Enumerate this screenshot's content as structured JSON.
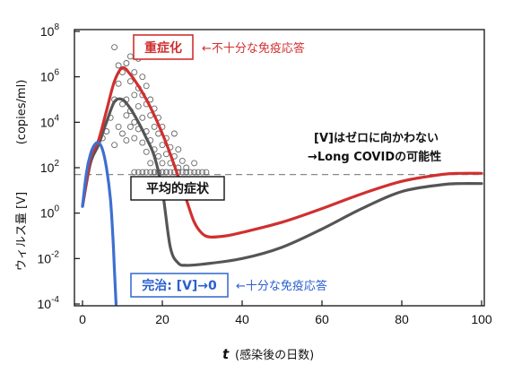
{
  "chart_data": {
    "type": "line",
    "title": "",
    "xlabel_italic": "t",
    "xlabel": "(感染後の日数)",
    "ylabel": "ウィルス量 [V]",
    "ylabel_unit": "(copies/ml)",
    "xlim": [
      0,
      100
    ],
    "ylim_log10": [
      -4,
      8
    ],
    "yscale": "log",
    "grid": false,
    "x_ticks": [
      0,
      20,
      40,
      60,
      80,
      100
    ],
    "y_ticks": [
      {
        "base": "10",
        "exp": "-4",
        "log10": -4
      },
      {
        "base": "10",
        "exp": "-2",
        "log10": -2
      },
      {
        "base": "10",
        "exp": "0",
        "log10": 0
      },
      {
        "base": "10",
        "exp": "2",
        "log10": 2
      },
      {
        "base": "10",
        "exp": "4",
        "log10": 4
      },
      {
        "base": "10",
        "exp": "6",
        "log10": 6
      },
      {
        "base": "10",
        "exp": "8",
        "log10": 8
      }
    ],
    "threshold_log10": 1.7,
    "series": [
      {
        "key": "severe",
        "color": "#d03030",
        "points": [
          [
            0,
            0.3
          ],
          [
            2,
            2.4
          ],
          [
            4,
            3.2
          ],
          [
            6,
            4.5
          ],
          [
            8,
            5.8
          ],
          [
            10,
            6.4
          ],
          [
            12,
            6.1
          ],
          [
            14,
            5.6
          ],
          [
            16,
            5.0
          ],
          [
            18,
            4.3
          ],
          [
            20,
            3.5
          ],
          [
            22,
            2.6
          ],
          [
            24,
            1.6
          ],
          [
            26,
            0.6
          ],
          [
            28,
            -0.4
          ],
          [
            30,
            -0.9
          ],
          [
            32,
            -1.05
          ],
          [
            36,
            -1.0
          ],
          [
            40,
            -0.85
          ],
          [
            50,
            -0.4
          ],
          [
            60,
            0.2
          ],
          [
            70,
            0.85
          ],
          [
            80,
            1.4
          ],
          [
            90,
            1.7
          ],
          [
            95,
            1.75
          ],
          [
            100,
            1.75
          ]
        ]
      },
      {
        "key": "average",
        "color": "#555555",
        "points": [
          [
            0,
            0.3
          ],
          [
            2,
            2.2
          ],
          [
            4,
            3.0
          ],
          [
            6,
            4.0
          ],
          [
            8,
            4.9
          ],
          [
            10,
            5.0
          ],
          [
            12,
            4.6
          ],
          [
            14,
            4.0
          ],
          [
            16,
            3.3
          ],
          [
            18,
            2.5
          ],
          [
            20,
            1.0
          ],
          [
            22,
            -1.5
          ],
          [
            24,
            -2.2
          ],
          [
            26,
            -2.3
          ],
          [
            30,
            -2.25
          ],
          [
            40,
            -2.0
          ],
          [
            50,
            -1.5
          ],
          [
            60,
            -0.7
          ],
          [
            70,
            0.2
          ],
          [
            80,
            0.95
          ],
          [
            90,
            1.25
          ],
          [
            95,
            1.3
          ],
          [
            100,
            1.3
          ]
        ]
      },
      {
        "key": "recovered",
        "color": "#3e6fd0",
        "points": [
          [
            0,
            0.3
          ],
          [
            1,
            1.8
          ],
          [
            2,
            2.6
          ],
          [
            3,
            3.0
          ],
          [
            4,
            3.1
          ],
          [
            5,
            2.8
          ],
          [
            6,
            2.0
          ],
          [
            7,
            0.6
          ],
          [
            7.6,
            -1.0
          ],
          [
            8,
            -2.5
          ],
          [
            8.4,
            -4.0
          ]
        ]
      }
    ],
    "scatter": [
      [
        5,
        3.3
      ],
      [
        6,
        3.6
      ],
      [
        7,
        4.2
      ],
      [
        8,
        5.0
      ],
      [
        8,
        3.0
      ],
      [
        8,
        7.3
      ],
      [
        9,
        5.7
      ],
      [
        9,
        3.8
      ],
      [
        9,
        6.5
      ],
      [
        10,
        4.8
      ],
      [
        10,
        6.2
      ],
      [
        10,
        3.5
      ],
      [
        11,
        5.0
      ],
      [
        11,
        6.6
      ],
      [
        11,
        4.3
      ],
      [
        11,
        3.2
      ],
      [
        12,
        5.8
      ],
      [
        12,
        4.5
      ],
      [
        12,
        6.9
      ],
      [
        12,
        3.8
      ],
      [
        13,
        5.2
      ],
      [
        13,
        4.0
      ],
      [
        13,
        6.2
      ],
      [
        13,
        3.3
      ],
      [
        14,
        4.7
      ],
      [
        14,
        5.5
      ],
      [
        14,
        3.7
      ],
      [
        14,
        6.8
      ],
      [
        15,
        4.2
      ],
      [
        15,
        5.2
      ],
      [
        15,
        3.1
      ],
      [
        15,
        6.0
      ],
      [
        16,
        4.8
      ],
      [
        16,
        3.6
      ],
      [
        16,
        5.6
      ],
      [
        16,
        2.7
      ],
      [
        17,
        4.3
      ],
      [
        17,
        3.2
      ],
      [
        17,
        5.0
      ],
      [
        17,
        2.2
      ],
      [
        18,
        3.8
      ],
      [
        18,
        2.8
      ],
      [
        18,
        4.6
      ],
      [
        18,
        1.8
      ],
      [
        19,
        3.5
      ],
      [
        19,
        2.5
      ],
      [
        19,
        4.2
      ],
      [
        19,
        1.8
      ],
      [
        20,
        3.0
      ],
      [
        20,
        2.2
      ],
      [
        20,
        3.8
      ],
      [
        20,
        1.8
      ],
      [
        21,
        2.6
      ],
      [
        21,
        3.3
      ],
      [
        21,
        1.8
      ],
      [
        22,
        2.2
      ],
      [
        22,
        2.9
      ],
      [
        22,
        1.8
      ],
      [
        23,
        2.5
      ],
      [
        23,
        1.8
      ],
      [
        23,
        3.5
      ],
      [
        24,
        2.0
      ],
      [
        24,
        1.8
      ],
      [
        24,
        2.8
      ],
      [
        25,
        1.8
      ],
      [
        25,
        2.3
      ],
      [
        26,
        1.8
      ],
      [
        26,
        2.0
      ],
      [
        27,
        1.8
      ],
      [
        28,
        1.8
      ],
      [
        28,
        2.2
      ],
      [
        29,
        1.8
      ],
      [
        30,
        1.8
      ],
      [
        31,
        1.8
      ],
      [
        13,
        1.8
      ],
      [
        14,
        1.8
      ],
      [
        15,
        1.8
      ],
      [
        16,
        1.8
      ],
      [
        17,
        1.8
      ],
      [
        18,
        1.8
      ],
      [
        19,
        1.8
      ],
      [
        20,
        1.8
      ],
      [
        21,
        1.8
      ]
    ],
    "annotations": {
      "severe_label": "重症化",
      "severe_note": "←不十分な免疫応答",
      "persist_line1": "[V]はゼロに向かわない",
      "persist_line2": "→Long COVIDの可能性",
      "average_label": "平均的症状",
      "cure_label": "完治: [V]→0",
      "cure_note": "←十分な免疫応答"
    }
  }
}
